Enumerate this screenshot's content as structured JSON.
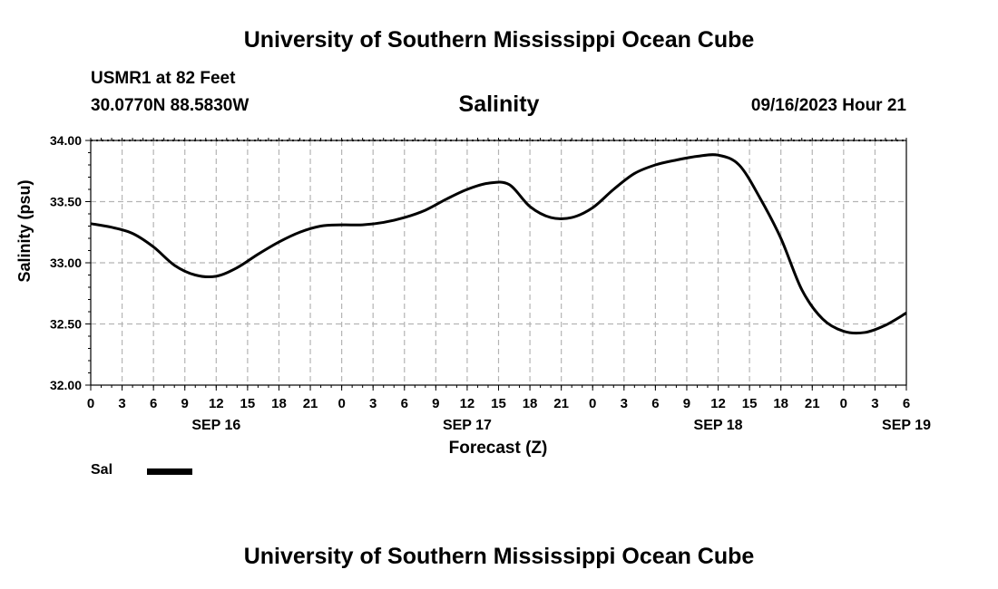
{
  "header": {
    "title": "University of Southern Mississippi Ocean Cube",
    "station": "USMR1 at 82 Feet",
    "coordinates": "30.0770N  88.5830W",
    "datetime": "09/16/2023 Hour 21"
  },
  "footer": {
    "title": "University of Southern Mississippi Ocean Cube"
  },
  "legend": {
    "label": "Sal"
  },
  "chart_data": {
    "type": "line",
    "title": "Salinity",
    "xlabel": "Forecast (Z)",
    "ylabel": "Salinity (psu)",
    "ylim": [
      32.0,
      34.0
    ],
    "y_ticks": [
      "32.00",
      "32.50",
      "33.00",
      "33.50",
      "34.00"
    ],
    "x_range_hours": [
      0,
      78
    ],
    "x_tick_labels": [
      "0",
      "3",
      "6",
      "9",
      "12",
      "15",
      "18",
      "21",
      "0",
      "3",
      "6",
      "9",
      "12",
      "15",
      "18",
      "21",
      "0",
      "3",
      "6",
      "9",
      "12",
      "15",
      "18",
      "21",
      "0",
      "3",
      "6"
    ],
    "date_labels": [
      {
        "label": "SEP 16",
        "hour": 12
      },
      {
        "label": "SEP 17",
        "hour": 36
      },
      {
        "label": "SEP 18",
        "hour": 60
      },
      {
        "label": "SEP 19",
        "hour": 78
      }
    ],
    "grid": true,
    "legend_position": "bottom-left",
    "series": [
      {
        "name": "Sal",
        "color": "#000000",
        "x": [
          0,
          2,
          4,
          6,
          8,
          10,
          12,
          14,
          16,
          18,
          20,
          22,
          24,
          26,
          28,
          30,
          32,
          34,
          36,
          38,
          40,
          42,
          44,
          46,
          48,
          50,
          52,
          54,
          56,
          58,
          60,
          62,
          64,
          66,
          68,
          70,
          72,
          74,
          76,
          78
        ],
        "values": [
          33.32,
          33.29,
          33.24,
          33.13,
          32.98,
          32.9,
          32.89,
          32.96,
          33.07,
          33.17,
          33.25,
          33.3,
          33.31,
          33.31,
          33.33,
          33.37,
          33.43,
          33.52,
          33.6,
          33.65,
          33.64,
          33.46,
          33.37,
          33.37,
          33.45,
          33.6,
          33.73,
          33.8,
          33.84,
          33.87,
          33.88,
          33.8,
          33.53,
          33.2,
          32.78,
          32.54,
          32.44,
          32.43,
          32.49,
          32.59
        ]
      }
    ]
  }
}
